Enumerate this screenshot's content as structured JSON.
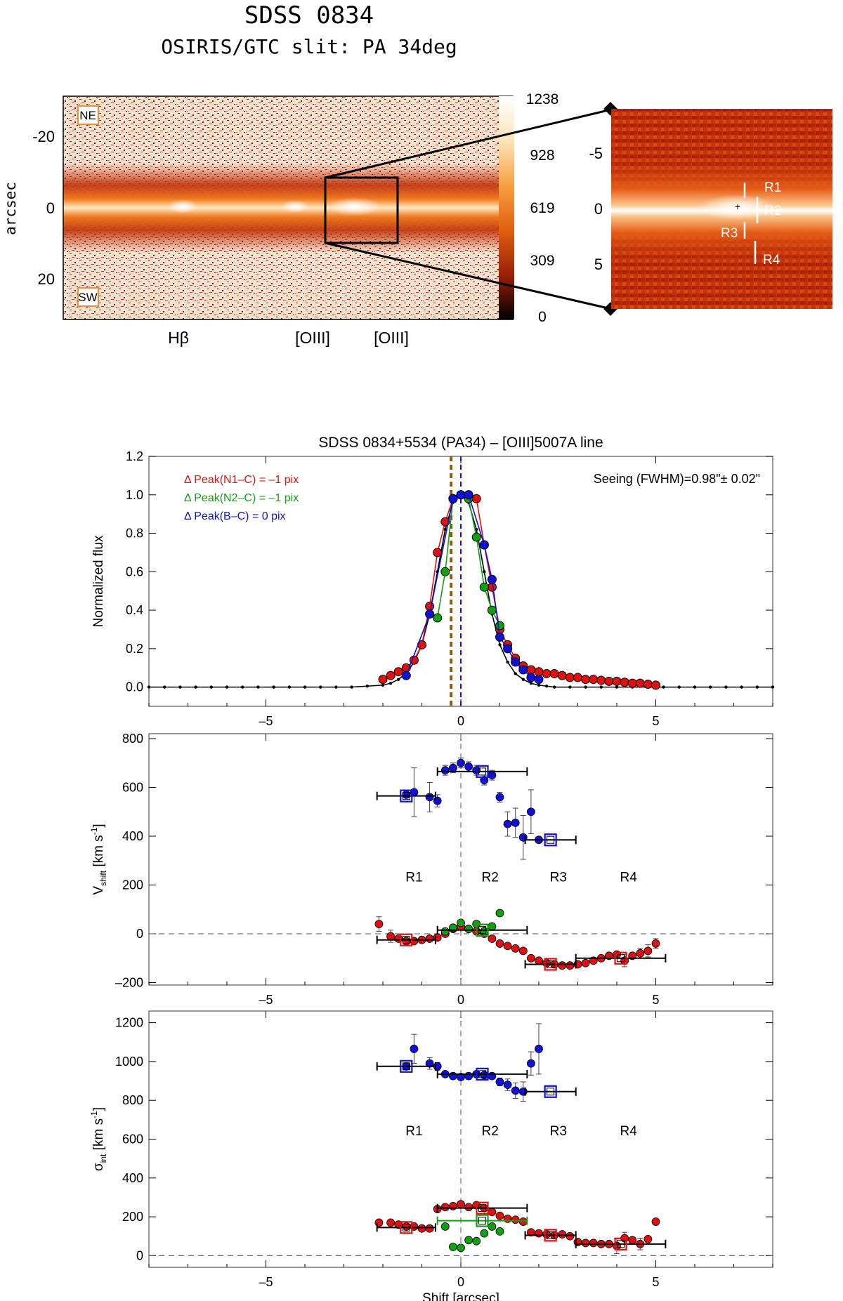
{
  "header": {
    "title": "SDSS 0834",
    "subtitle": "OSIRIS/GTC slit: PA 34deg"
  },
  "spectrum_image": {
    "ylabel": "arcsec",
    "yticks": [
      -20,
      0,
      20
    ],
    "labels": {
      "ne": "NE",
      "sw": "SW"
    },
    "lines": [
      "Hβ",
      "[OIII]",
      "[OIII]"
    ],
    "colorbar_ticks": [
      "1238",
      "928",
      "619",
      "309",
      "0"
    ],
    "colors": {
      "bright": "#ffffff",
      "mid": "#f08a20",
      "dark": "#c03008",
      "bg": "#f7e8d8"
    }
  },
  "zoom_image": {
    "yticks": [
      -5,
      0,
      5
    ],
    "regions": [
      "R1",
      "R2",
      "R3",
      "R4"
    ]
  },
  "chart_data": [
    {
      "type": "line",
      "title": "SDSS 0834+5534 (PA34) – [OIII]5007A line",
      "xlabel": "",
      "ylabel": "Normalized flux",
      "xlim": [
        -8,
        8
      ],
      "ylim": [
        -0.1,
        1.2
      ],
      "xticks": [
        -5,
        0,
        5
      ],
      "yticks": [
        0.0,
        0.2,
        0.4,
        0.6,
        0.8,
        1.0,
        1.2
      ],
      "annotations": {
        "n1": "Δ Peak(N1–C) = –1 pix",
        "n2": "Δ Peak(N2–C) = –1 pix",
        "b": "Δ Peak(B–C) = 0 pix",
        "seeing": "Seeing (FWHM)=0.98\"± 0.02\""
      },
      "vlines": [
        {
          "x": -0.25,
          "color": "#8b5a14"
        },
        {
          "x": 0.0,
          "color": "#1010dd"
        }
      ],
      "series": [
        {
          "color": "#000000",
          "x": [
            -8.0,
            -7.6,
            -7.2,
            -6.8,
            -6.4,
            -6.0,
            -5.6,
            -5.2,
            -4.8,
            -4.4,
            -4.0,
            -3.6,
            -3.2,
            -2.8,
            -2.4,
            -2.0,
            -1.8,
            -1.6,
            -1.4,
            -1.2,
            -1.0,
            -0.8,
            -0.6,
            -0.4,
            -0.2,
            0.0,
            0.2,
            0.4,
            0.6,
            0.8,
            1.0,
            1.2,
            1.4,
            1.6,
            1.8,
            2.0,
            2.2,
            2.4,
            2.8,
            3.2,
            3.6,
            4.0,
            4.4,
            4.8,
            5.2,
            5.6,
            6.0,
            6.4,
            6.8,
            7.2,
            7.6,
            8.0
          ],
          "y": [
            0.0,
            0.0,
            0.0,
            0.0,
            0.0,
            0.0,
            0.0,
            0.0,
            0.0,
            0.0,
            0.0,
            0.0,
            0.0,
            0.0,
            0.005,
            0.01,
            0.02,
            0.04,
            0.07,
            0.13,
            0.22,
            0.38,
            0.6,
            0.82,
            0.96,
            1.0,
            0.96,
            0.82,
            0.6,
            0.38,
            0.22,
            0.13,
            0.07,
            0.04,
            0.02,
            0.01,
            0.005,
            0.0,
            0.0,
            0.0,
            0.0,
            0.0,
            0.0,
            0.0,
            0.0,
            0.0,
            0.0,
            0.0,
            0.0,
            0.0,
            0.0,
            0.0
          ]
        },
        {
          "color": "#e01010",
          "x": [
            -2.0,
            -1.8,
            -1.6,
            -1.4,
            -1.2,
            -1.0,
            -0.8,
            -0.6,
            -0.4,
            -0.2,
            0.0,
            0.2,
            0.4,
            0.6,
            0.8,
            1.0,
            1.2,
            1.4,
            1.6,
            1.8,
            2.0,
            2.2,
            2.4,
            2.6,
            2.8,
            3.0,
            3.2,
            3.4,
            3.6,
            3.8,
            4.0,
            4.2,
            4.4,
            4.6,
            4.8,
            5.0
          ],
          "y": [
            0.04,
            0.06,
            0.08,
            0.1,
            0.14,
            0.22,
            0.42,
            0.7,
            0.86,
            0.98,
            1.0,
            1.0,
            0.98,
            0.74,
            0.52,
            0.3,
            0.22,
            0.15,
            0.11,
            0.09,
            0.08,
            0.07,
            0.07,
            0.06,
            0.05,
            0.05,
            0.04,
            0.04,
            0.035,
            0.03,
            0.03,
            0.025,
            0.02,
            0.02,
            0.015,
            0.01
          ]
        },
        {
          "color": "#10a010",
          "x": [
            -0.6,
            -0.4,
            -0.2,
            0.0,
            0.2,
            0.4,
            0.6,
            0.8,
            1.0
          ],
          "y": [
            0.36,
            0.6,
            0.98,
            1.0,
            0.98,
            0.78,
            0.52,
            0.4,
            0.32
          ]
        },
        {
          "color": "#1010dd",
          "x": [
            -1.4,
            -0.8,
            -0.2,
            0.0,
            0.2,
            0.6,
            0.8,
            1.0,
            1.2,
            1.4,
            1.6,
            1.8,
            2.0
          ],
          "y": [
            0.06,
            0.38,
            0.98,
            1.0,
            1.0,
            0.74,
            0.56,
            0.26,
            0.2,
            0.13,
            0.09,
            0.05,
            0.04
          ]
        }
      ]
    },
    {
      "type": "scatter",
      "title": "",
      "xlabel": "",
      "ylabel": "V_shift [km s^-1]",
      "xlim": [
        -8,
        8
      ],
      "ylim": [
        -210,
        820
      ],
      "xticks": [
        -5,
        0,
        5
      ],
      "yticks": [
        -200,
        0,
        200,
        400,
        600,
        800
      ],
      "region_labels": [
        {
          "text": "R1",
          "x": -1.2
        },
        {
          "text": "R2",
          "x": 0.75
        },
        {
          "text": "R3",
          "x": 2.5
        },
        {
          "text": "R4",
          "x": 4.3
        }
      ],
      "region_label_y": 215,
      "series": [
        {
          "color": "#1010dd",
          "x": [
            -1.4,
            -1.2,
            -0.8,
            -0.6,
            -0.4,
            -0.2,
            0.0,
            0.2,
            0.4,
            0.6,
            0.8,
            1.0,
            1.2,
            1.4,
            1.6,
            1.8,
            2.0
          ],
          "y": [
            570,
            580,
            560,
            545,
            670,
            680,
            700,
            685,
            670,
            630,
            650,
            560,
            450,
            455,
            395,
            500,
            385
          ],
          "err": [
            0,
            100,
            60,
            25,
            20,
            20,
            20,
            20,
            20,
            20,
            20,
            20,
            50,
            60,
            90,
            90,
            0
          ]
        },
        {
          "color": "#e01010",
          "x": [
            -2.1,
            -1.8,
            -1.6,
            -1.4,
            -1.2,
            -1.0,
            -0.8,
            -0.6,
            -0.4,
            -0.2,
            0.0,
            0.2,
            0.4,
            0.6,
            0.8,
            1.0,
            1.2,
            1.4,
            1.6,
            1.8,
            2.0,
            2.2,
            2.4,
            2.6,
            2.8,
            3.0,
            3.2,
            3.4,
            3.6,
            3.8,
            4.0,
            4.2,
            4.4,
            4.6,
            4.8,
            5.0
          ],
          "y": [
            40,
            -10,
            -20,
            -30,
            -30,
            -25,
            -20,
            -15,
            0,
            20,
            30,
            20,
            10,
            0,
            -20,
            -40,
            -50,
            -60,
            -70,
            -100,
            -110,
            -120,
            -125,
            -130,
            -130,
            -125,
            -120,
            -110,
            -100,
            -90,
            -85,
            -110,
            -90,
            -80,
            -70,
            -40
          ],
          "err": [
            30,
            25,
            0,
            0,
            0,
            0,
            0,
            0,
            0,
            0,
            0,
            0,
            0,
            0,
            0,
            0,
            0,
            0,
            0,
            0,
            0,
            0,
            0,
            0,
            0,
            0,
            0,
            0,
            0,
            0,
            0,
            25,
            0,
            20,
            25,
            20
          ]
        },
        {
          "color": "#10a010",
          "x": [
            -0.4,
            -0.2,
            0.0,
            0.2,
            0.4,
            0.6,
            0.8,
            1.0
          ],
          "y": [
            10,
            25,
            45,
            20,
            40,
            10,
            30,
            85
          ],
          "err": [
            0,
            0,
            0,
            0,
            0,
            0,
            0,
            0
          ]
        }
      ],
      "boxes": [
        {
          "x": -1.4,
          "y": 565,
          "color": "#1010dd",
          "xerr": 0.75
        },
        {
          "x": 0.55,
          "y": 665,
          "color": "#1010dd",
          "xerr": 1.15
        },
        {
          "x": 2.3,
          "y": 385,
          "color": "#1010dd",
          "xerr": 0.65
        },
        {
          "x": -1.4,
          "y": -25,
          "color": "#e01010",
          "xerr": 0.75
        },
        {
          "x": 0.55,
          "y": 15,
          "color": "#e01010",
          "xerr": 1.15
        },
        {
          "x": 0.55,
          "y": 15,
          "color": "#10a010",
          "xerr": 0.0
        },
        {
          "x": 2.3,
          "y": -125,
          "color": "#e01010",
          "xerr": 0.65
        },
        {
          "x": 4.1,
          "y": -100,
          "color": "#e01010",
          "xerr": 1.15
        }
      ]
    },
    {
      "type": "scatter",
      "title": "",
      "xlabel": "Shift [arcsec]",
      "ylabel": "σ_int [km s^-1]",
      "xlim": [
        -8,
        8
      ],
      "ylim": [
        -60,
        1260
      ],
      "xticks": [
        -5,
        0,
        5
      ],
      "yticks": [
        0,
        200,
        400,
        600,
        800,
        1000,
        1200
      ],
      "region_labels": [
        {
          "text": "R1",
          "x": -1.2
        },
        {
          "text": "R2",
          "x": 0.75
        },
        {
          "text": "R3",
          "x": 2.5
        },
        {
          "text": "R4",
          "x": 4.3
        }
      ],
      "region_label_y": 620,
      "series": [
        {
          "color": "#1010dd",
          "x": [
            -1.4,
            -1.2,
            -0.8,
            -0.6,
            -0.4,
            -0.2,
            0.0,
            0.2,
            0.4,
            0.6,
            0.8,
            1.0,
            1.2,
            1.4,
            1.6,
            1.8,
            2.0
          ],
          "y": [
            975,
            1065,
            990,
            975,
            935,
            925,
            920,
            925,
            935,
            930,
            925,
            895,
            880,
            850,
            845,
            990,
            1065
          ],
          "err": [
            0,
            75,
            30,
            20,
            15,
            15,
            15,
            15,
            15,
            15,
            15,
            20,
            30,
            40,
            50,
            60,
            130
          ]
        },
        {
          "color": "#e01010",
          "x": [
            -2.1,
            -1.8,
            -1.6,
            -1.4,
            -1.2,
            -1.0,
            -0.8,
            -0.6,
            -0.4,
            -0.2,
            0.0,
            0.2,
            0.4,
            0.6,
            0.8,
            1.0,
            1.2,
            1.4,
            1.6,
            1.8,
            2.0,
            2.2,
            2.4,
            2.6,
            2.8,
            3.0,
            3.2,
            3.4,
            3.6,
            3.8,
            4.0,
            4.2,
            4.4,
            4.6,
            4.8,
            5.0
          ],
          "y": [
            170,
            170,
            160,
            150,
            150,
            140,
            140,
            240,
            250,
            255,
            265,
            250,
            260,
            245,
            225,
            205,
            190,
            185,
            175,
            120,
            115,
            110,
            105,
            110,
            100,
            70,
            65,
            65,
            60,
            60,
            50,
            90,
            80,
            60,
            85,
            175
          ],
          "err": [
            0,
            0,
            0,
            0,
            0,
            0,
            0,
            0,
            0,
            0,
            0,
            0,
            0,
            0,
            0,
            0,
            0,
            0,
            0,
            0,
            0,
            0,
            0,
            0,
            0,
            0,
            0,
            0,
            0,
            0,
            40,
            30,
            0,
            30,
            0,
            0
          ]
        },
        {
          "color": "#10a010",
          "x": [
            -0.4,
            -0.2,
            0.0,
            0.2,
            0.4,
            0.6,
            0.8,
            1.0
          ],
          "y": [
            150,
            45,
            40,
            80,
            75,
            115,
            150,
            125
          ],
          "err": [
            0,
            0,
            0,
            0,
            0,
            0,
            0,
            0
          ]
        }
      ],
      "boxes": [
        {
          "x": -1.4,
          "y": 975,
          "color": "#1010dd",
          "xerr": 0.75
        },
        {
          "x": 0.55,
          "y": 935,
          "color": "#1010dd",
          "xerr": 1.15
        },
        {
          "x": 2.3,
          "y": 845,
          "color": "#1010dd",
          "xerr": 0.65
        },
        {
          "x": -1.4,
          "y": 145,
          "color": "#e01010",
          "xerr": 0.75
        },
        {
          "x": 0.55,
          "y": 245,
          "color": "#e01010",
          "xerr": 1.15
        },
        {
          "x": 0.55,
          "y": 180,
          "color": "#10a010",
          "xerr": 1.15
        },
        {
          "x": 2.3,
          "y": 105,
          "color": "#e01010",
          "xerr": 0.65
        },
        {
          "x": 4.1,
          "y": 60,
          "color": "#e01010",
          "xerr": 1.15
        }
      ]
    }
  ]
}
